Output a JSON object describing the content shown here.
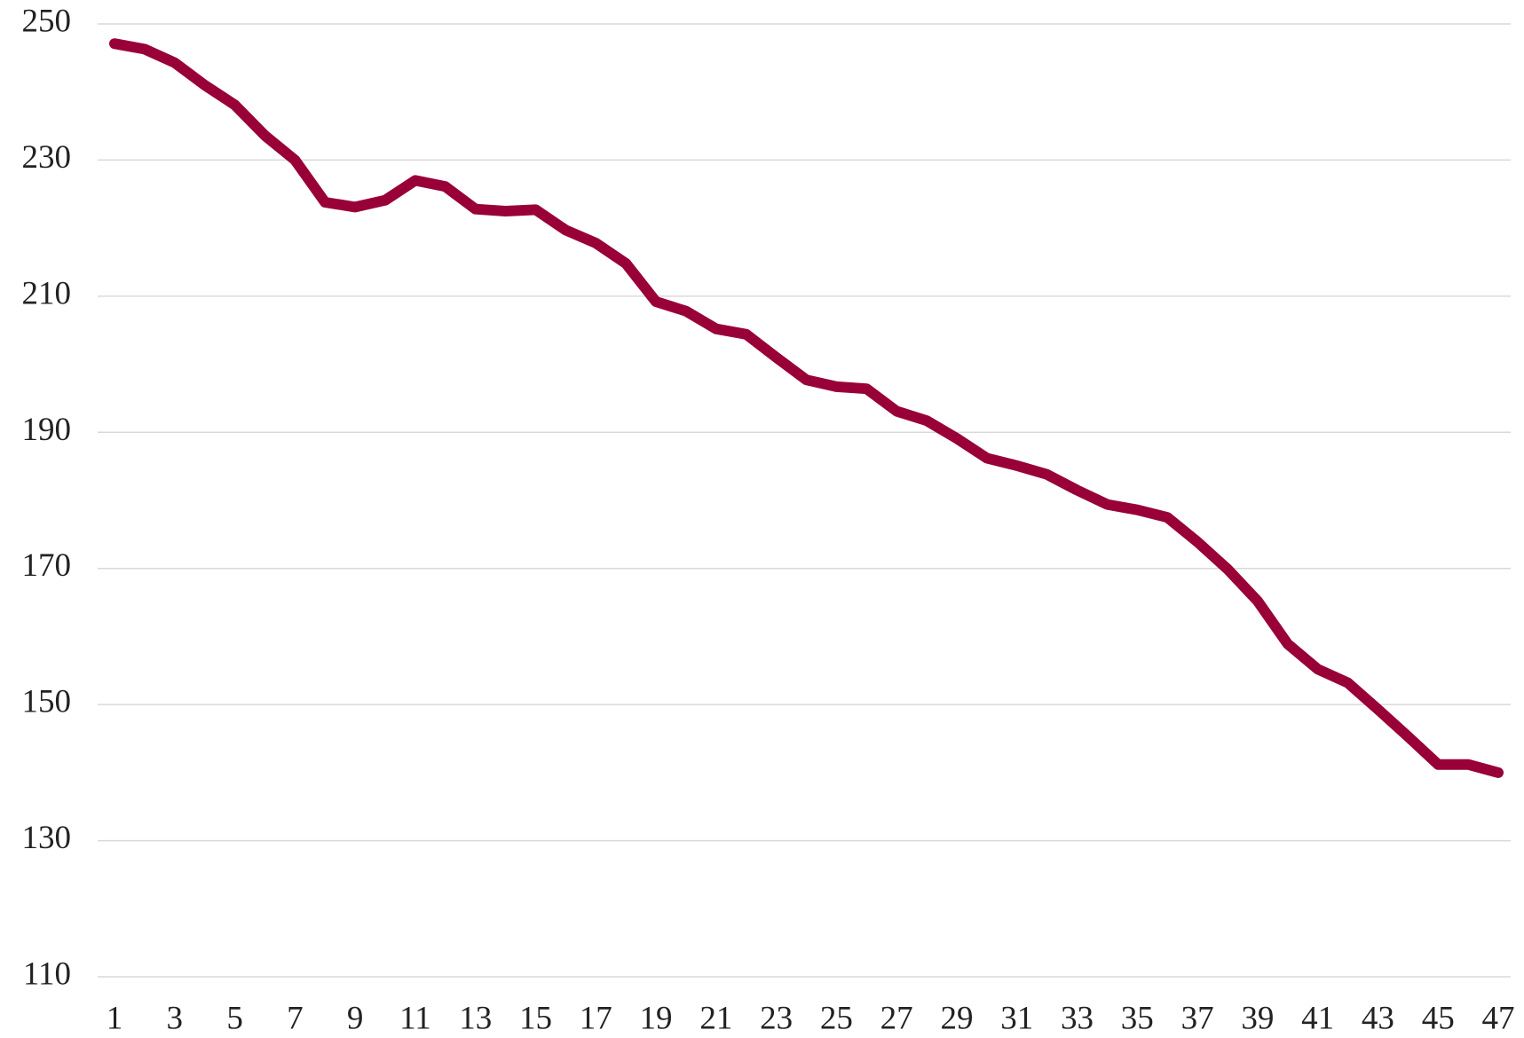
{
  "chart_data": {
    "type": "line",
    "x": [
      1,
      2,
      3,
      4,
      5,
      6,
      7,
      8,
      9,
      10,
      11,
      12,
      13,
      14,
      15,
      16,
      17,
      18,
      19,
      20,
      21,
      22,
      23,
      24,
      25,
      26,
      27,
      28,
      29,
      30,
      31,
      32,
      33,
      34,
      35,
      36,
      37,
      38,
      39,
      40,
      41,
      42,
      43,
      44,
      45,
      46,
      47
    ],
    "series": [
      {
        "color": "#990038",
        "values": [
          247.1,
          246.3,
          244.3,
          241,
          238.1,
          233.6,
          230,
          223.8,
          223.1,
          224.1,
          227,
          226.1,
          222.8,
          222.5,
          222.7,
          219.7,
          217.8,
          214.8,
          209.2,
          207.8,
          205.2,
          204.4,
          201,
          197.7,
          196.7,
          196.4,
          193.1,
          191.7,
          189.1,
          186.2,
          185.1,
          183.8,
          181.5,
          179.4,
          178.6,
          177.5,
          173.9,
          169.9,
          165.2,
          158.9,
          155.2,
          153.2,
          149.3,
          145.3,
          141.2,
          141.2,
          140
        ]
      }
    ],
    "xlim": [
      1,
      47
    ],
    "xticks": [
      1,
      3,
      5,
      7,
      9,
      11,
      13,
      15,
      17,
      19,
      21,
      23,
      25,
      27,
      29,
      31,
      33,
      35,
      37,
      39,
      41,
      43,
      45,
      47
    ],
    "ylim": [
      110,
      250
    ],
    "yticks": [
      110,
      130,
      150,
      170,
      190,
      210,
      230,
      250
    ],
    "grid": true
  }
}
